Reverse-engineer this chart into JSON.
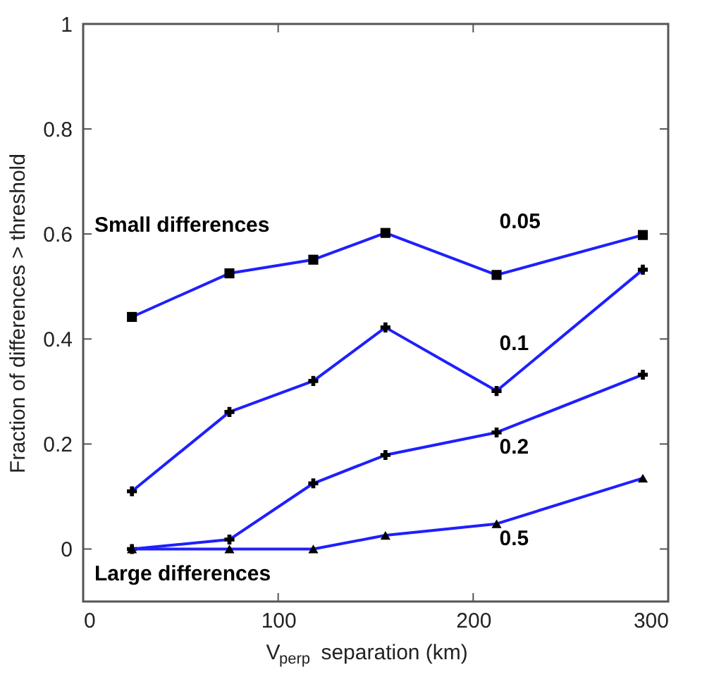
{
  "chart_data": {
    "type": "line",
    "xlabel": "V$_{perp}$ separation (km)",
    "ylabel": "Fraction of differences > threshold",
    "x": [
      25,
      75,
      118,
      155,
      212,
      287
    ],
    "series": [
      {
        "name": "0.05",
        "color": "#1f1fff",
        "marker": "square",
        "values": [
          0.442,
          0.525,
          0.551,
          0.602,
          0.522,
          0.598
        ]
      },
      {
        "name": "0.1",
        "color": "#1f1fff",
        "marker": "cross",
        "values": [
          0.11,
          0.261,
          0.32,
          0.422,
          0.301,
          0.532
        ]
      },
      {
        "name": "0.2",
        "color": "#1f1fff",
        "marker": "cross",
        "values": [
          0.0,
          0.018,
          0.125,
          0.179,
          0.222,
          0.332
        ]
      },
      {
        "name": "0.5",
        "color": "#1f1fff",
        "marker": "triangle",
        "values": [
          0.0,
          0.0,
          0.0,
          0.026,
          0.048,
          0.135
        ]
      }
    ],
    "annotations": [
      "Small differences",
      "Large differences"
    ],
    "xlim": [
      0,
      300
    ],
    "xticks": [
      0,
      100,
      200,
      300
    ],
    "ylim": [
      -0.1,
      1
    ],
    "yticks": [
      0,
      0.2,
      0.4,
      0.6,
      0.8,
      1
    ],
    "grid": false,
    "line_style": "solid"
  }
}
